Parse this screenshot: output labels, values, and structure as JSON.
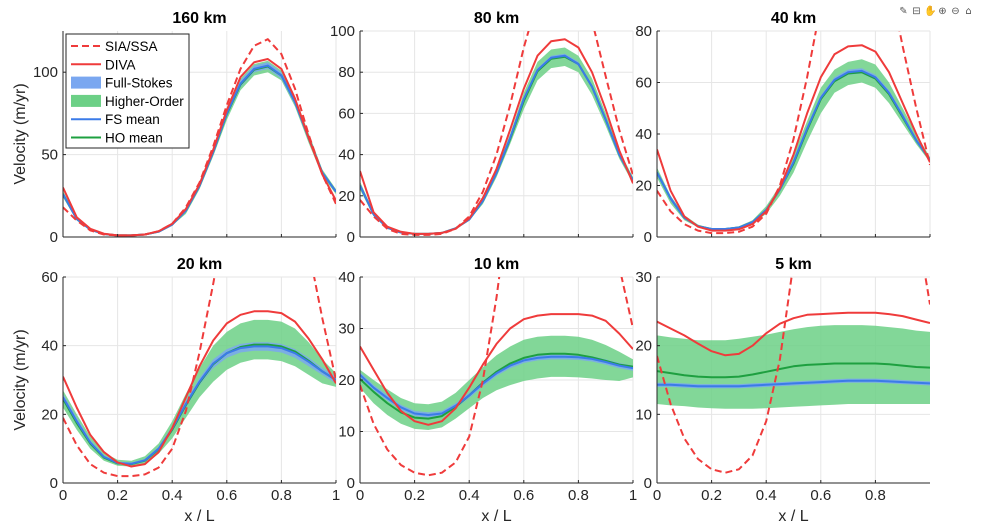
{
  "colors": {
    "sia": "#ef3b3b",
    "diva": "#ef3b3b",
    "fs_band": "#7aa7f0",
    "ho_band": "#6cd086",
    "fs_mean": "#3b7be8",
    "ho_mean": "#1ea040",
    "axis": "#262626",
    "grid": "#e6e6e6"
  },
  "toolbar": {
    "icons": [
      "brush-icon",
      "export-icon",
      "pan-icon",
      "zoom-in-icon",
      "zoom-out-icon",
      "home-icon"
    ]
  },
  "legend": {
    "placement": "top-left of first panel",
    "entries": [
      {
        "key": "sia",
        "label": "SIA/SSA",
        "style": "dashed"
      },
      {
        "key": "diva",
        "label": "DIVA",
        "style": "solid"
      },
      {
        "key": "fs",
        "label": "Full-Stokes",
        "style": "patch"
      },
      {
        "key": "ho",
        "label": "Higher-Order",
        "style": "patch"
      },
      {
        "key": "fsm",
        "label": "FS mean",
        "style": "solid"
      },
      {
        "key": "hom",
        "label": "HO mean",
        "style": "solid"
      }
    ]
  },
  "chart_data": [
    {
      "type": "line",
      "title": "160 km",
      "ylabel": "Velocity (m/yr)",
      "xlabel": "",
      "xlim": [
        0,
        1
      ],
      "ylim": [
        0,
        125
      ],
      "yticks": [
        0,
        50,
        100
      ],
      "xticks": [
        0,
        0.2,
        0.4,
        0.6,
        0.8,
        1
      ],
      "xtick_labels": [
        "",
        "",
        "",
        "",
        "",
        ""
      ],
      "grid": true,
      "x": [
        0,
        0.05,
        0.1,
        0.15,
        0.2,
        0.25,
        0.3,
        0.35,
        0.4,
        0.45,
        0.5,
        0.55,
        0.6,
        0.65,
        0.7,
        0.75,
        0.8,
        0.85,
        0.9,
        0.95,
        1
      ],
      "sia": [
        18,
        10,
        4,
        1.5,
        1,
        1,
        1.5,
        3.5,
        8,
        18,
        33,
        55,
        80,
        102,
        116,
        120,
        111,
        90,
        62,
        38,
        20
      ],
      "diva": [
        30,
        12,
        5,
        2,
        1,
        1,
        1.5,
        3.5,
        8,
        17,
        32,
        53,
        77,
        97,
        106,
        108,
        102,
        84,
        60,
        38,
        22
      ],
      "fs_lo": [
        25,
        10,
        4,
        1.5,
        1,
        1,
        1.5,
        3,
        7,
        15,
        30,
        50,
        73,
        91,
        100,
        102,
        96,
        80,
        58,
        38,
        27
      ],
      "fs_hi": [
        27,
        12,
        5,
        2,
        1,
        1,
        1.5,
        3.5,
        8,
        17,
        32,
        53,
        77,
        95,
        104,
        106,
        100,
        84,
        62,
        40,
        28
      ],
      "ho_lo": [
        24,
        10,
        4,
        1.5,
        1,
        1,
        1.5,
        3,
        7,
        14,
        29,
        49,
        71,
        89,
        98,
        100,
        95,
        79,
        57,
        37,
        26
      ],
      "ho_hi": [
        28,
        12,
        5,
        2,
        1,
        1,
        1.5,
        3.5,
        8,
        18,
        33,
        54,
        78,
        96,
        105,
        107,
        101,
        85,
        63,
        41,
        29
      ],
      "fs_mean": [
        26,
        11,
        4.5,
        1.8,
        1,
        1,
        1.5,
        3.2,
        7.5,
        16,
        31,
        51.5,
        75,
        93,
        102,
        104,
        98,
        82,
        60,
        39,
        27.5
      ],
      "ho_mean": [
        26,
        11,
        4.5,
        1.8,
        1,
        1,
        1.5,
        3.2,
        7.5,
        16,
        31,
        51.5,
        74.5,
        92.5,
        101.5,
        103.5,
        98,
        82,
        60,
        39,
        27.5
      ]
    },
    {
      "type": "line",
      "title": "80 km",
      "ylabel": "",
      "xlabel": "",
      "xlim": [
        0,
        1
      ],
      "ylim": [
        0,
        100
      ],
      "yticks": [
        0,
        20,
        40,
        60,
        80,
        100
      ],
      "xticks": [
        0,
        0.2,
        0.4,
        0.6,
        0.8,
        1
      ],
      "xtick_labels": [
        "",
        "",
        "",
        "",
        "",
        ""
      ],
      "grid": true,
      "x": [
        0,
        0.05,
        0.1,
        0.15,
        0.2,
        0.25,
        0.3,
        0.35,
        0.4,
        0.45,
        0.5,
        0.55,
        0.6,
        0.65,
        0.7,
        0.75,
        0.8,
        0.85,
        0.9,
        0.95,
        1
      ],
      "sia": [
        18,
        10,
        4,
        1.5,
        1,
        1,
        1.5,
        4,
        10,
        22,
        40,
        64,
        92,
        115,
        130,
        135,
        125,
        105,
        78,
        52,
        30
      ],
      "diva": [
        32,
        12,
        5,
        2.5,
        1.5,
        1.5,
        2,
        4,
        9,
        19,
        33,
        52,
        72,
        88,
        95,
        96,
        92,
        80,
        62,
        42,
        26
      ],
      "fs_lo": [
        24,
        10,
        4,
        2,
        1.5,
        1.5,
        2,
        4,
        8,
        17,
        30,
        47,
        66,
        80,
        86,
        87,
        83,
        72,
        56,
        39,
        27
      ],
      "fs_hi": [
        26,
        12,
        5,
        2.5,
        1.5,
        1.5,
        2,
        4.5,
        9,
        18,
        32,
        49,
        68,
        82,
        88,
        89,
        85,
        74,
        58,
        41,
        28
      ],
      "ho_lo": [
        23,
        10,
        4,
        2,
        1.5,
        1.5,
        2,
        4,
        8,
        16,
        29,
        45,
        62,
        76,
        82,
        83,
        80,
        69,
        54,
        38,
        26
      ],
      "ho_hi": [
        27,
        12,
        5,
        2.5,
        1.5,
        1.5,
        2,
        4.5,
        9.5,
        19,
        33,
        50,
        70,
        85,
        91,
        92,
        88,
        77,
        60,
        42,
        29
      ],
      "fs_mean": [
        25,
        11,
        4.5,
        2.2,
        1.5,
        1.5,
        2,
        4.2,
        8.5,
        17.5,
        31,
        48,
        67,
        81,
        87,
        88,
        84,
        73,
        57,
        40,
        27.5
      ],
      "ho_mean": [
        25,
        11,
        4.5,
        2.2,
        1.5,
        1.5,
        2,
        4.2,
        8.5,
        17.5,
        31,
        47.5,
        66,
        80.5,
        86.5,
        87.5,
        84,
        73,
        57,
        40,
        27.5
      ]
    },
    {
      "type": "line",
      "title": "40 km",
      "ylabel": "",
      "xlabel": "",
      "xlim": [
        0,
        1
      ],
      "ylim": [
        0,
        80
      ],
      "yticks": [
        0,
        20,
        40,
        60,
        80
      ],
      "xticks": [
        0,
        0.2,
        0.4,
        0.6,
        0.8,
        1
      ],
      "xtick_labels": [
        "",
        "",
        "",
        "",
        "",
        ""
      ],
      "grid": true,
      "x": [
        0,
        0.05,
        0.1,
        0.15,
        0.2,
        0.25,
        0.3,
        0.35,
        0.4,
        0.45,
        0.5,
        0.55,
        0.6,
        0.65,
        0.7,
        0.75,
        0.8,
        0.85,
        0.9,
        0.95,
        1
      ],
      "sia": [
        18,
        10,
        5,
        2.5,
        1.5,
        1.5,
        2,
        4,
        9,
        20,
        38,
        62,
        90,
        112,
        125,
        128,
        118,
        100,
        74,
        50,
        28
      ],
      "diva": [
        34,
        18,
        8,
        4,
        2.5,
        2.5,
        3,
        5,
        10,
        19,
        32,
        48,
        62,
        71,
        74,
        74.5,
        72,
        64,
        52,
        40,
        29
      ],
      "fs_lo": [
        24,
        14,
        7,
        4,
        3,
        3,
        3.5,
        5.5,
        10,
        18,
        28,
        41,
        53,
        60,
        63,
        63.5,
        61,
        55,
        46,
        37,
        30
      ],
      "fs_hi": [
        26,
        16,
        8,
        4.5,
        3.2,
        3.2,
        4,
        6,
        11,
        19,
        30,
        43,
        55,
        62,
        65,
        65.5,
        63,
        57,
        48,
        38,
        30
      ],
      "ho_lo": [
        23,
        13,
        6.5,
        3.8,
        2.8,
        2.8,
        3.3,
        5,
        9,
        16,
        25,
        37,
        48,
        56,
        59,
        60,
        58,
        52,
        44,
        36,
        29
      ],
      "ho_hi": [
        27,
        16,
        8.5,
        4.8,
        3.4,
        3.4,
        4.2,
        6.5,
        12,
        20,
        32,
        45,
        58,
        65,
        68,
        69,
        67,
        60,
        50,
        40,
        31
      ],
      "fs_mean": [
        25,
        15,
        7.5,
        4.2,
        3.1,
        3.1,
        3.7,
        5.8,
        10.5,
        18.5,
        29,
        42,
        54,
        61,
        64,
        64.5,
        62,
        56,
        47,
        37.5,
        30
      ],
      "ho_mean": [
        25,
        15,
        7.5,
        4.2,
        3.1,
        3.1,
        3.7,
        5.8,
        10.5,
        18.5,
        28.5,
        41.5,
        53.5,
        60.5,
        63.5,
        64,
        61.5,
        55.5,
        46.5,
        37.5,
        30
      ]
    },
    {
      "type": "line",
      "title": "20 km",
      "ylabel": "Velocity (m/yr)",
      "xlabel": "x / L",
      "xlim": [
        0,
        1
      ],
      "ylim": [
        0,
        60
      ],
      "yticks": [
        0,
        20,
        40,
        60
      ],
      "xticks": [
        0,
        0.2,
        0.4,
        0.6,
        0.8,
        1
      ],
      "xtick_labels": [
        "0",
        "0.2",
        "0.4",
        "0.6",
        "0.8",
        "1"
      ],
      "grid": true,
      "x": [
        0,
        0.05,
        0.1,
        0.15,
        0.2,
        0.25,
        0.3,
        0.35,
        0.4,
        0.45,
        0.5,
        0.55,
        0.6,
        0.65,
        0.7,
        0.75,
        0.8,
        0.85,
        0.9,
        0.95,
        1
      ],
      "sia": [
        19,
        11,
        5.5,
        3,
        2,
        2,
        2.5,
        4.5,
        10,
        21,
        38,
        58,
        80,
        100,
        112,
        114,
        106,
        90,
        68,
        48,
        30
      ],
      "diva": [
        31,
        22,
        14,
        9,
        6,
        4.8,
        5.5,
        9,
        16,
        25,
        34,
        41.5,
        46.5,
        49,
        50,
        50,
        49.5,
        47,
        42,
        36,
        29
      ],
      "fs_lo": [
        24,
        17,
        11,
        7.2,
        5.5,
        5.3,
        6.2,
        9.5,
        15,
        22,
        28.5,
        33.5,
        36.5,
        38,
        38.5,
        38.5,
        38,
        36.5,
        34,
        31.5,
        29
      ],
      "fs_hi": [
        26,
        19,
        12.5,
        8,
        6.2,
        6,
        7,
        10.5,
        16.5,
        24,
        30.5,
        36,
        39,
        40.5,
        41,
        41,
        40.5,
        39,
        36.5,
        33.5,
        31
      ],
      "ho_lo": [
        22,
        15.5,
        10,
        6.5,
        5,
        4.8,
        5.5,
        8.5,
        13,
        19,
        25,
        29.5,
        33,
        35,
        36,
        36,
        35.5,
        34,
        31.5,
        29,
        28
      ],
      "ho_hi": [
        27,
        20,
        13.5,
        8.8,
        6.8,
        6.5,
        7.8,
        11.5,
        18,
        26,
        33.5,
        40,
        44,
        46.5,
        47.5,
        47.5,
        47,
        45,
        41,
        36,
        32
      ],
      "fs_mean": [
        25,
        18,
        11.8,
        7.6,
        5.8,
        5.6,
        6.6,
        10,
        15.8,
        23,
        29.5,
        34.8,
        37.8,
        39.3,
        39.8,
        39.8,
        39.3,
        37.8,
        35.3,
        32.5,
        30
      ],
      "ho_mean": [
        24.5,
        17.5,
        11.5,
        7.4,
        5.7,
        5.5,
        6.5,
        9.8,
        15.5,
        22.7,
        29.2,
        34.6,
        37.8,
        39.6,
        40.3,
        40.3,
        39.8,
        38.3,
        35.6,
        32.5,
        30
      ]
    },
    {
      "type": "line",
      "title": "10 km",
      "ylabel": "",
      "xlabel": "x / L",
      "xlim": [
        0,
        1
      ],
      "ylim": [
        0,
        40
      ],
      "yticks": [
        0,
        10,
        20,
        30,
        40
      ],
      "xticks": [
        0,
        0.2,
        0.4,
        0.6,
        0.8,
        1
      ],
      "xtick_labels": [
        "0",
        "0.2",
        "0.4",
        "0.6",
        "0.8",
        "1"
      ],
      "grid": true,
      "x": [
        0,
        0.05,
        0.1,
        0.15,
        0.2,
        0.25,
        0.3,
        0.35,
        0.4,
        0.45,
        0.5,
        0.55,
        0.6,
        0.65,
        0.7,
        0.75,
        0.8,
        0.85,
        0.9,
        0.95,
        1
      ],
      "sia": [
        19,
        11.5,
        6.5,
        3.5,
        2,
        1.5,
        2,
        4,
        9,
        20,
        36,
        56,
        78,
        96,
        108,
        110,
        100,
        82,
        60,
        42,
        30
      ],
      "diva": [
        26.5,
        22,
        17.5,
        14,
        12,
        11.3,
        12,
        14.5,
        18.5,
        23,
        27,
        30,
        31.8,
        32.5,
        32.8,
        32.8,
        32.8,
        32.5,
        31.5,
        29,
        26
      ],
      "fs_lo": [
        20.5,
        18,
        16,
        14.2,
        13,
        12.7,
        13,
        14.5,
        16.5,
        18.8,
        20.8,
        22.3,
        23.3,
        23.8,
        24,
        24,
        23.9,
        23.6,
        23,
        22.3,
        21.8
      ],
      "fs_hi": [
        21.5,
        19,
        17,
        15.2,
        14,
        13.7,
        14,
        15.5,
        17.5,
        19.8,
        21.8,
        23.3,
        24.3,
        24.8,
        25,
        25,
        24.9,
        24.6,
        24,
        23.3,
        22.8
      ],
      "ho_lo": [
        18.5,
        15.5,
        13.2,
        11.5,
        10.5,
        10.3,
        10.8,
        12.5,
        14.5,
        16.5,
        18,
        19,
        19.8,
        20.3,
        20.6,
        20.6,
        20.5,
        20.3,
        20,
        19.8,
        20.5
      ],
      "ho_hi": [
        22,
        20,
        18.2,
        16.5,
        15.5,
        15.3,
        15.8,
        17.5,
        20,
        22.5,
        24.8,
        26.5,
        27.8,
        28.4,
        28.6,
        28.6,
        28.4,
        27.8,
        26.8,
        25.5,
        24
      ],
      "fs_mean": [
        21,
        18.5,
        16.5,
        14.7,
        13.5,
        13.2,
        13.5,
        15,
        17,
        19.3,
        21.3,
        22.8,
        23.8,
        24.3,
        24.5,
        24.5,
        24.4,
        24.1,
        23.5,
        22.8,
        22.3
      ],
      "ho_mean": [
        20.2,
        17.7,
        15.5,
        13.7,
        12.7,
        12.5,
        13,
        14.8,
        17,
        19.5,
        21.6,
        23.2,
        24.3,
        24.9,
        25.1,
        25.1,
        24.9,
        24.4,
        23.7,
        23,
        22.6
      ]
    },
    {
      "type": "line",
      "title": "5 km",
      "ylabel": "",
      "xlabel": "x / L",
      "xlim": [
        0,
        1
      ],
      "ylim": [
        0,
        30
      ],
      "yticks": [
        0,
        10,
        20,
        30
      ],
      "xticks": [
        0,
        0.2,
        0.4,
        0.6,
        0.8
      ],
      "xtick_labels": [
        "0",
        "0.2",
        "0.4",
        "0.6",
        "0.8"
      ],
      "grid": true,
      "x": [
        0,
        0.05,
        0.1,
        0.15,
        0.2,
        0.25,
        0.3,
        0.35,
        0.4,
        0.45,
        0.5,
        0.55,
        0.6,
        0.65,
        0.7,
        0.75,
        0.8,
        0.85,
        0.9,
        0.95,
        1
      ],
      "sia": [
        18.5,
        11.5,
        6.5,
        3.5,
        2,
        1.5,
        2,
        4,
        9,
        18,
        32,
        50,
        70,
        86,
        96,
        98,
        90,
        74,
        55,
        38,
        26
      ],
      "diva": [
        23.5,
        22.5,
        21.5,
        20.3,
        19.2,
        18.6,
        18.8,
        20,
        21.8,
        23.2,
        24,
        24.5,
        24.6,
        24.7,
        24.8,
        24.8,
        24.8,
        24.6,
        24.3,
        23.8,
        23.3
      ],
      "fs_lo": [
        14,
        14,
        13.9,
        13.8,
        13.8,
        13.8,
        13.8,
        13.9,
        14,
        14.1,
        14.2,
        14.3,
        14.4,
        14.5,
        14.6,
        14.6,
        14.6,
        14.5,
        14.4,
        14.3,
        14.2
      ],
      "fs_hi": [
        14.6,
        14.6,
        14.5,
        14.4,
        14.4,
        14.4,
        14.4,
        14.5,
        14.6,
        14.7,
        14.8,
        14.9,
        15,
        15.1,
        15.2,
        15.2,
        15.2,
        15.1,
        15,
        14.9,
        14.8
      ],
      "ho_lo": [
        11.5,
        11.3,
        11.2,
        11,
        10.9,
        10.8,
        10.8,
        10.8,
        10.9,
        11,
        11.1,
        11.2,
        11.3,
        11.4,
        11.5,
        11.5,
        11.5,
        11.5,
        11.5,
        11.5,
        11.5
      ],
      "ho_hi": [
        21.5,
        21.2,
        21,
        20.8,
        20.8,
        20.8,
        21,
        21.3,
        21.6,
        22,
        22.4,
        22.7,
        22.9,
        23,
        23,
        23,
        22.9,
        22.7,
        22.5,
        22.2,
        22
      ],
      "fs_mean": [
        14.3,
        14.3,
        14.2,
        14.1,
        14.1,
        14.1,
        14.1,
        14.2,
        14.3,
        14.4,
        14.5,
        14.6,
        14.7,
        14.8,
        14.9,
        14.9,
        14.9,
        14.8,
        14.7,
        14.6,
        14.5
      ],
      "ho_mean": [
        16.3,
        16,
        15.7,
        15.5,
        15.4,
        15.4,
        15.5,
        15.8,
        16.2,
        16.6,
        17,
        17.2,
        17.3,
        17.4,
        17.4,
        17.4,
        17.4,
        17.3,
        17.1,
        16.9,
        16.8
      ]
    }
  ]
}
